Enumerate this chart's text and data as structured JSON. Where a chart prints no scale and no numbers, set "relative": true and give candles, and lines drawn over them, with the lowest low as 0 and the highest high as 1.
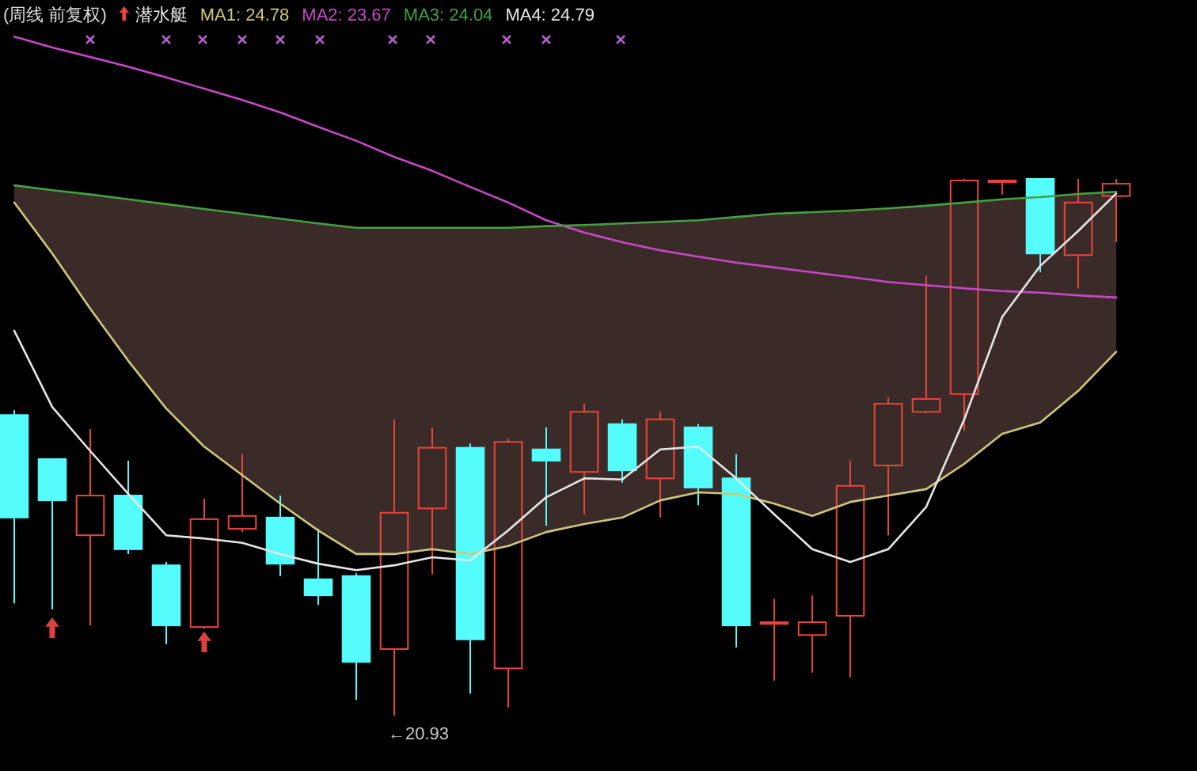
{
  "chart_data": {
    "type": "candlestick",
    "title": "(周线 前复权)",
    "legend_title": "潜水艇",
    "relative": true,
    "legend": "top left",
    "categories": [
      null,
      null,
      null,
      null,
      null,
      null,
      null,
      null,
      null,
      null,
      null,
      null,
      null,
      null,
      null,
      null,
      null,
      null,
      null,
      null,
      null,
      null,
      null,
      null,
      null,
      null,
      null,
      null,
      null,
      null
    ],
    "ohlc": [
      [
        0.56,
        0.569,
        0.209,
        0.369
      ],
      [
        0.478,
        0.478,
        0.198,
        0.401
      ],
      [
        0.336,
        0.534,
        0.168,
        0.41
      ],
      [
        0.41,
        0.475,
        0.301,
        0.31
      ],
      [
        0.28,
        0.286,
        0.133,
        0.168
      ],
      [
        0.165,
        0.404,
        0.162,
        0.366
      ],
      [
        0.348,
        0.487,
        0.342,
        0.372
      ],
      [
        0.369,
        0.41,
        0.26,
        0.283
      ],
      [
        0.254,
        0.348,
        0.206,
        0.224
      ],
      [
        0.26,
        0.265,
        0.029,
        0.1
      ],
      [
        0.124,
        0.552,
        0,
        0.378
      ],
      [
        0.386,
        0.537,
        0.263,
        0.499
      ],
      [
        0.499,
        0.507,
        0.041,
        0.142
      ],
      [
        0.088,
        0.516,
        0.015,
        0.51
      ],
      [
        0.496,
        0.537,
        0.354,
        0.475
      ],
      [
        0.454,
        0.581,
        0.375,
        0.566
      ],
      [
        0.543,
        0.552,
        0.434,
        0.457
      ],
      [
        0.442,
        0.566,
        0.369,
        0.552
      ],
      [
        0.537,
        0.543,
        0.392,
        0.425
      ],
      [
        0.442,
        0.487,
        0.127,
        0.168
      ],
      [
        0.171,
        0.218,
        0.065,
        0.174
      ],
      [
        0.15,
        0.224,
        0.08,
        0.174
      ],
      [
        0.186,
        0.475,
        0.071,
        0.428
      ],
      [
        0.466,
        0.593,
        0.336,
        0.581
      ],
      [
        0.566,
        0.82,
        0.563,
        0.59
      ],
      [
        0.599,
        1,
        0.531,
        0.997
      ],
      [
        0.994,
        0.997,
        0.971,
        0.997
      ],
      [
        1,
        1,
        0.826,
        0.861
      ],
      [
        0.858,
        1,
        0.796,
        0.956
      ],
      [
        0.968,
        1,
        0.882,
        0.991
      ]
    ],
    "colors": [
      "#54fcfc",
      "#54fcfc",
      "#e8453c",
      "#54fcfc",
      "#54fcfc",
      "#e8453c",
      "#e8453c",
      "#54fcfc",
      "#54fcfc",
      "#54fcfc",
      "#e8453c",
      "#e8453c",
      "#54fcfc",
      "#e8453c",
      "#54fcfc",
      "#e8453c",
      "#54fcfc",
      "#e8453c",
      "#54fcfc",
      "#54fcfc",
      "#e8453c",
      "#e8453c",
      "#e8453c",
      "#e8453c",
      "#e8453c",
      "#e8453c",
      "#e8453c",
      "#54fcfc",
      "#e8453c",
      "#e8453c"
    ],
    "series": [
      {
        "name": "MA1: 24.78",
        "type": "line",
        "color": "#cfc87a",
        "values": [
          0.956,
          0.861,
          0.758,
          0.661,
          0.572,
          0.501,
          0.448,
          0.395,
          0.345,
          0.301,
          0.301,
          0.31,
          0.301,
          0.316,
          0.342,
          0.357,
          0.369,
          0.401,
          0.416,
          0.413,
          0.395,
          0.372,
          0.398,
          0.41,
          0.422,
          0.469,
          0.525,
          0.546,
          0.605,
          0.678
        ]
      },
      {
        "name": "MA2: 23.67",
        "type": "line",
        "color": "#c848c8",
        "values": [
          1.265,
          1.245,
          1.227,
          1.209,
          1.189,
          1.168,
          1.147,
          1.124,
          1.097,
          1.071,
          1.041,
          1.015,
          0.985,
          0.956,
          0.923,
          0.9,
          0.882,
          0.867,
          0.855,
          0.844,
          0.835,
          0.826,
          0.817,
          0.808,
          0.802,
          0.796,
          0.791,
          0.788,
          0.783,
          0.779
        ]
      },
      {
        "name": "MA3: 24.04",
        "type": "line",
        "color": "#44a044",
        "values": [
          0.988,
          0.979,
          0.971,
          0.962,
          0.953,
          0.944,
          0.935,
          0.926,
          0.917,
          0.909,
          0.909,
          0.909,
          0.909,
          0.909,
          0.912,
          0.914,
          0.917,
          0.92,
          0.923,
          0.929,
          0.935,
          0.938,
          0.941,
          0.945,
          0.95,
          0.956,
          0.962,
          0.966,
          0.972,
          0.976
        ]
      },
      {
        "name": "MA4: 24.79",
        "type": "line",
        "color": "#e6e6e6",
        "values": [
          0.717,
          0.575,
          0.493,
          0.413,
          0.336,
          0.33,
          0.322,
          0.301,
          0.283,
          0.271,
          0.28,
          0.295,
          0.289,
          0.345,
          0.407,
          0.442,
          0.44,
          0.496,
          0.501,
          0.442,
          0.375,
          0.31,
          0.286,
          0.31,
          0.389,
          0.552,
          0.743,
          0.838,
          0.903,
          0.973
        ]
      },
      {
        "type": "area",
        "color": "#3b2b28",
        "values": [
          null,
          null,
          null,
          null,
          null,
          null,
          null,
          null,
          null,
          null,
          null,
          null,
          null,
          null,
          null,
          null,
          null,
          null,
          null,
          null,
          null,
          null,
          null,
          null,
          null,
          null,
          null,
          null,
          null,
          null
        ],
        "lower": [
          0.956,
          0.861,
          0.758,
          0.661,
          0.572,
          0.501,
          0.448,
          0.395,
          0.345,
          0.301,
          0.301,
          0.31,
          0.301,
          0.316,
          0.342,
          0.357,
          0.369,
          0.401,
          0.416,
          0.413,
          0.395,
          0.372,
          0.398,
          0.41,
          0.422,
          0.469,
          0.525,
          0.546,
          0.605,
          0.678
        ],
        "upper": [
          0.988,
          0.979,
          0.971,
          0.962,
          0.953,
          0.944,
          0.935,
          0.926,
          0.917,
          0.909,
          0.909,
          0.909,
          0.909,
          0.909,
          0.912,
          0.914,
          0.917,
          0.92,
          0.923,
          0.929,
          0.935,
          0.938,
          0.941,
          0.945,
          0.95,
          0.956,
          0.962,
          0.966,
          0.972,
          0.976
        ]
      }
    ],
    "annotations": [
      "←20.93"
    ]
  }
}
